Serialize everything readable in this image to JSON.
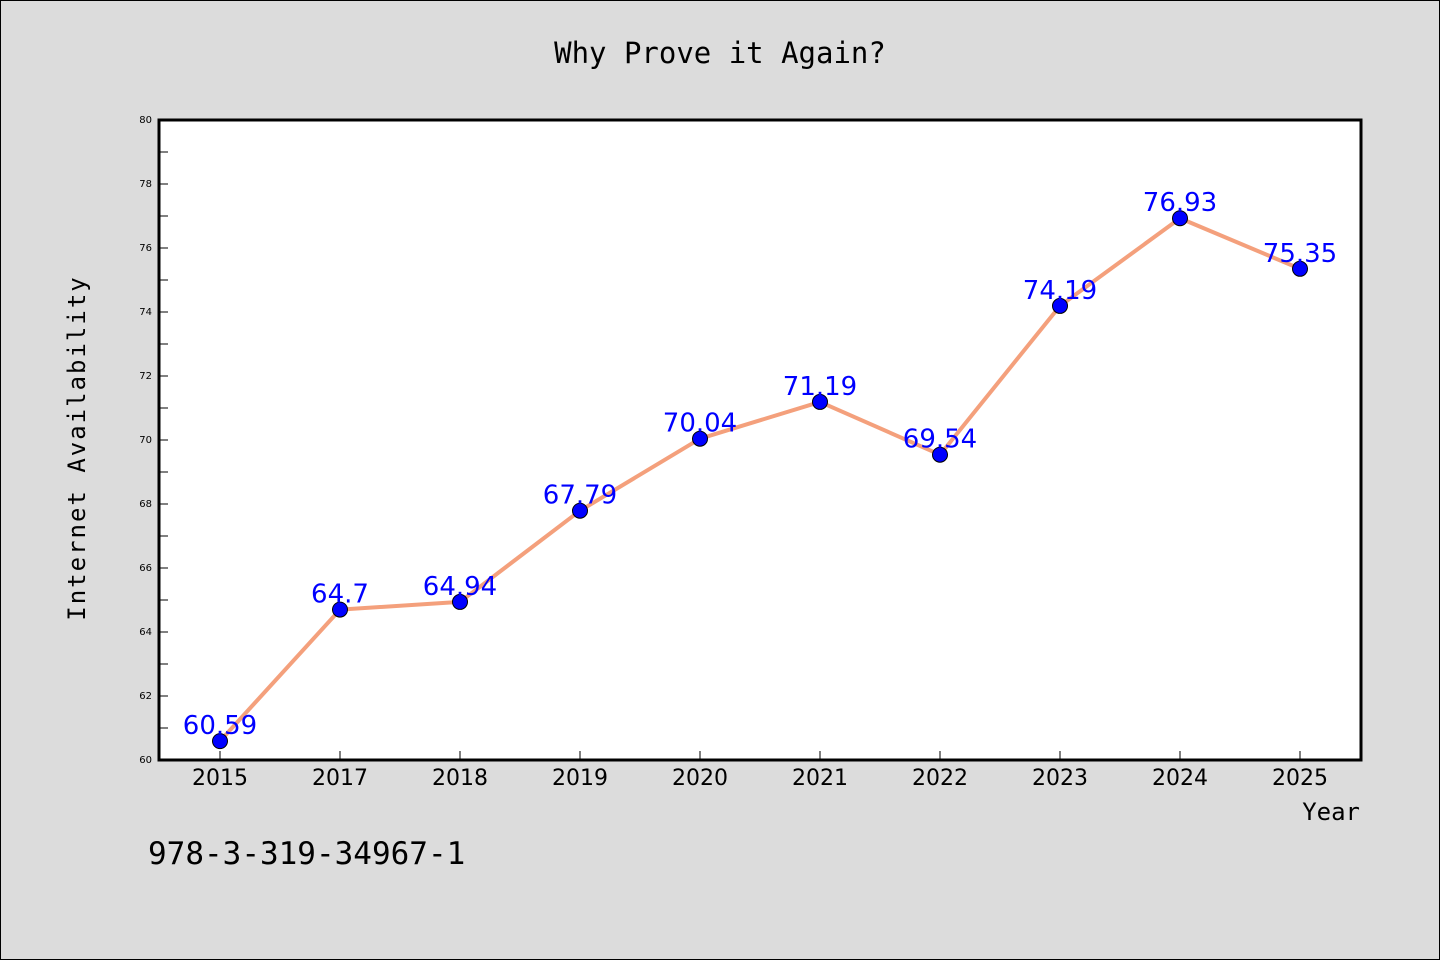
{
  "chart_data": {
    "type": "line",
    "title": "Why Prove it Again?",
    "xlabel": "Year",
    "ylabel": "Internet Availability",
    "categories": [
      "2015",
      "2017",
      "2018",
      "2019",
      "2020",
      "2021",
      "2022",
      "2023",
      "2024",
      "2025"
    ],
    "series": [
      {
        "values": [
          60.59,
          64.7,
          64.94,
          67.79,
          70.04,
          71.19,
          69.54,
          74.19,
          76.93,
          75.35
        ],
        "data_labels": [
          "60.59",
          "64.7",
          "64.94",
          "67.79",
          "70.04",
          "71.19",
          "69.54",
          "74.19",
          "76.93",
          "75.35"
        ],
        "line_color": "#f4a07c",
        "marker_color": "#0000ff",
        "label_color": "#0000ff"
      }
    ],
    "ylim": [
      60,
      80
    ],
    "yticks": [
      "60",
      "62",
      "64",
      "66",
      "68",
      "70",
      "72",
      "74",
      "76",
      "78",
      "80"
    ],
    "grid": false,
    "legend": "none",
    "background": "#dcdcdc",
    "plot_background": "#ffffff"
  },
  "annotation": {
    "isbn": "978-3-319-34967-1"
  }
}
